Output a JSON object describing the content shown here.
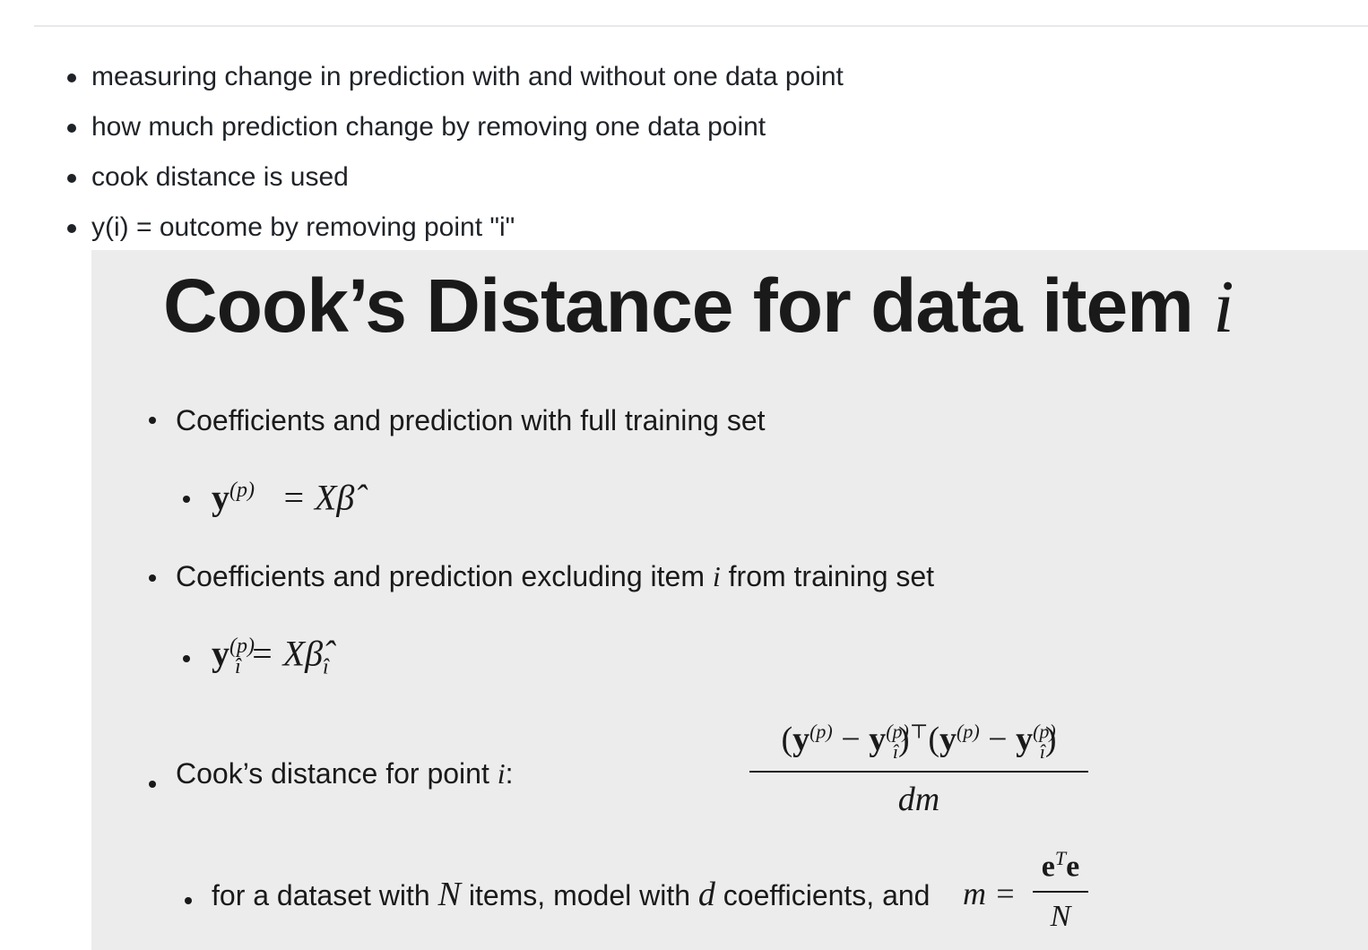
{
  "notes": [
    "measuring change in prediction with and without one data point",
    "how much prediction change by removing one data point",
    "cook distance is used",
    "y(i) = outcome by removing point \"i\""
  ],
  "slide": {
    "title_text": "Cook’s Distance for data item ",
    "title_var": "i",
    "bullet_full": "Coefficients and prediction with full training set",
    "eq_full": "= Xβ̂",
    "bullet_excl_pre": "Coefficients and prediction excluding item ",
    "bullet_excl_var": "i",
    "bullet_excl_post": " from training set",
    "eq_excl": "= Xβ̂",
    "cook_label_pre": "Cook’s distance for point ",
    "cook_label_var": "i",
    "cook_label_post": ":",
    "cook_denominator": "dm",
    "dataset_pre": "for a dataset with ",
    "dataset_N": "N",
    "dataset_mid1": " items, model with ",
    "dataset_d": "d",
    "dataset_mid2": " coefficients, and ",
    "m_lhs": "m =",
    "m_denominator": "N",
    "sym_y": "y",
    "sym_p": "(p)",
    "sym_i_hat": "î",
    "sym_e": "e",
    "sym_T": "T",
    "sym_transpose": "⊤"
  }
}
